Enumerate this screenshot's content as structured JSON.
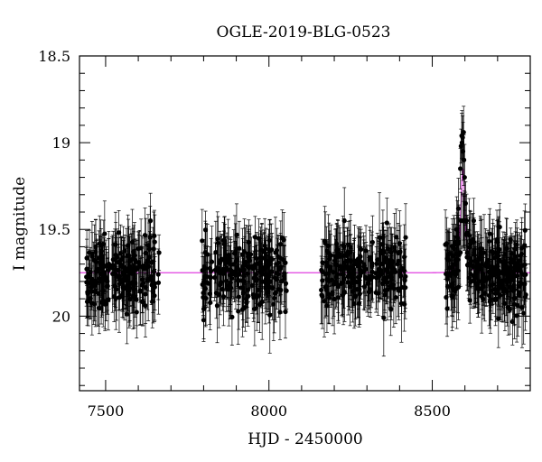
{
  "chart_data": {
    "type": "scatter",
    "title": "OGLE-2019-BLG-0523",
    "xlabel": "HJD - 2450000",
    "ylabel": "I magnitude",
    "xlim": [
      7420,
      8800
    ],
    "ylim": [
      20.43,
      18.5
    ],
    "y_inverted": true,
    "x_ticks": [
      7500,
      8000,
      8500
    ],
    "x_tick_labels": [
      "7500",
      "8000",
      "8500"
    ],
    "y_ticks": [
      18.5,
      19,
      19.5,
      20
    ],
    "y_tick_labels": [
      "18.5",
      "19",
      "19.5",
      "20"
    ],
    "x_minor_step": 100,
    "y_minor_step": 0.1,
    "grid": false,
    "legend": "none",
    "seasons": [
      {
        "start": 7440,
        "end": 7665,
        "n": 210
      },
      {
        "start": 7795,
        "end": 8055,
        "n": 230
      },
      {
        "start": 8160,
        "end": 8420,
        "n": 230
      },
      {
        "start": 8540,
        "end": 8790,
        "n": 280
      }
    ],
    "baseline_magnitude": 19.75,
    "scatter_sd": 0.1,
    "errorbar_sd": 0.16,
    "peak_points": [
      {
        "x": 8588,
        "y": 19.02
      },
      {
        "x": 8590,
        "y": 18.96
      },
      {
        "x": 8591,
        "y": 19.0
      },
      {
        "x": 8593,
        "y": 18.97
      },
      {
        "x": 8594,
        "y": 19.05
      },
      {
        "x": 8596,
        "y": 18.94
      },
      {
        "x": 8597,
        "y": 19.1
      },
      {
        "x": 8599,
        "y": 19.2
      },
      {
        "x": 8586,
        "y": 19.15
      },
      {
        "x": 8602,
        "y": 19.35
      },
      {
        "x": 8580,
        "y": 19.38
      },
      {
        "x": 8605,
        "y": 19.45
      },
      {
        "x": 8575,
        "y": 19.5
      }
    ],
    "model": {
      "name": "model",
      "t0": 8594,
      "tE": 12,
      "u0": 0.62,
      "baseline": 19.75,
      "peak_magnitude": 19.15,
      "color": "#e040e0"
    },
    "colors": {
      "points": "#000000",
      "model": "#e040e0"
    }
  }
}
